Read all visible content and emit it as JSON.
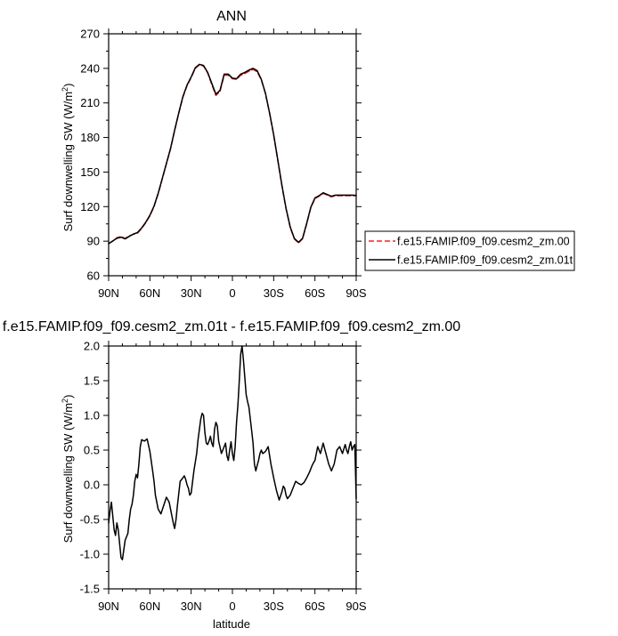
{
  "chart_data": [
    {
      "type": "line",
      "title": "ANN",
      "xlabel": "",
      "ylabel": "Surf downwelling SW (W/m²)",
      "ylabel_main": "Surf downwelling SW (W/m",
      "ylabel_sup": "2",
      "ylabel_tail": ")",
      "x_direction": "90N to 90S",
      "xlim": [
        90,
        -90
      ],
      "ylim": [
        60,
        270
      ],
      "x_ticks": [
        90,
        60,
        30,
        0,
        -30,
        -60,
        -90
      ],
      "x_tick_labels": [
        "90N",
        "60N",
        "30N",
        "0",
        "30S",
        "60S",
        "90S"
      ],
      "y_ticks": [
        60,
        90,
        120,
        150,
        180,
        210,
        240,
        270
      ],
      "y_tick_labels": [
        "60",
        "90",
        "120",
        "150",
        "180",
        "210",
        "240",
        "270"
      ],
      "grid": false,
      "legend_placement": "right",
      "series": [
        {
          "name": "f.e15.FAMIP.f09_f09.cesm2_zm.00",
          "color": "#e8262b",
          "dash": "dashed",
          "x": [
            90,
            87,
            84,
            81,
            78,
            75,
            72,
            69,
            66,
            63,
            60,
            57,
            54,
            51,
            48,
            45,
            42,
            39,
            36,
            33,
            30,
            27,
            24,
            21,
            18,
            15,
            12,
            9,
            6,
            3,
            0,
            -3,
            -6,
            -9,
            -12,
            -15,
            -18,
            -21,
            -24,
            -27,
            -30,
            -33,
            -36,
            -39,
            -42,
            -45,
            -48,
            -51,
            -54,
            -57,
            -60,
            -63,
            -66,
            -69,
            -72,
            -75,
            -78,
            -81,
            -84,
            -87,
            -90
          ],
          "y": [
            88,
            90,
            93,
            94,
            92.5,
            94.5,
            96,
            97,
            101,
            106,
            112,
            120,
            131,
            144,
            157,
            170,
            186,
            201,
            215,
            225,
            232,
            240,
            243,
            242,
            236,
            226,
            216.5,
            220,
            234,
            234,
            231,
            230.5,
            234,
            235.5,
            237.5,
            239,
            237,
            230,
            218,
            201,
            182,
            160,
            138,
            118,
            102,
            92,
            88.5,
            92,
            105,
            119,
            127,
            129,
            131.5,
            130,
            128.5,
            129.5,
            129.5,
            129.5,
            129.5,
            129.5,
            129.5
          ]
        },
        {
          "name": "f.e15.FAMIP.f09_f09.cesm2_zm.01t",
          "color": "#000000",
          "dash": "solid",
          "x": [
            90,
            87,
            84,
            81,
            78,
            75,
            72,
            69,
            66,
            63,
            60,
            57,
            54,
            51,
            48,
            45,
            42,
            39,
            36,
            33,
            30,
            27,
            24,
            21,
            18,
            15,
            12,
            9,
            6,
            3,
            0,
            -3,
            -6,
            -9,
            -12,
            -15,
            -18,
            -21,
            -24,
            -27,
            -30,
            -33,
            -36,
            -39,
            -42,
            -45,
            -48,
            -51,
            -54,
            -57,
            -60,
            -63,
            -66,
            -69,
            -72,
            -75,
            -78,
            -81,
            -84,
            -87,
            -90
          ],
          "y": [
            87.8,
            90.2,
            92.5,
            93.5,
            92,
            94.2,
            96.2,
            97.5,
            101.5,
            106.5,
            112.5,
            120.5,
            131.5,
            144.5,
            157.5,
            170.5,
            186.5,
            201.5,
            215.5,
            225.5,
            232.5,
            240.5,
            243.5,
            242.5,
            236.5,
            227,
            217.5,
            221,
            235,
            235,
            231.5,
            231,
            235,
            236.5,
            238.5,
            240,
            238,
            230.5,
            218.5,
            201.5,
            182.5,
            160.5,
            138.5,
            118.5,
            102.5,
            92.5,
            89,
            92.5,
            105.5,
            119.5,
            127.5,
            129.5,
            132,
            130.5,
            129,
            130,
            130,
            130,
            130,
            130,
            129.8
          ]
        }
      ]
    },
    {
      "type": "line",
      "title": "f.e15.FAMIP.f09_f09.cesm2_zm.01t - f.e15.FAMIP.f09_f09.cesm2_zm.00",
      "xlabel": "latitude",
      "ylabel": "Surf downwelling SW (W/m²)",
      "ylabel_main": "Surf downwelling SW (W/m",
      "ylabel_sup": "2",
      "ylabel_tail": ")",
      "x_direction": "90N to 90S",
      "xlim": [
        90,
        -90
      ],
      "ylim": [
        -1.5,
        2.0
      ],
      "x_ticks": [
        90,
        60,
        30,
        0,
        -30,
        -60,
        -90
      ],
      "x_tick_labels": [
        "90N",
        "60N",
        "30N",
        "0",
        "30S",
        "60S",
        "90S"
      ],
      "y_ticks": [
        -1.5,
        -1.0,
        -0.5,
        0.0,
        0.5,
        1.0,
        1.5,
        2.0
      ],
      "y_tick_labels": [
        "-1.5",
        "-1.0",
        "-0.5",
        "0.0",
        "0.5",
        "1.0",
        "1.5",
        "2.0"
      ],
      "grid": false,
      "series": [
        {
          "color": "#000000",
          "dash": "solid",
          "x": [
            90,
            89,
            88,
            87,
            86,
            85,
            84,
            83,
            82,
            81,
            80,
            78,
            76,
            75,
            74,
            73,
            72,
            71,
            70,
            69,
            68,
            67,
            66,
            64,
            62,
            60,
            58,
            57,
            56,
            54,
            52,
            50,
            48,
            46,
            45,
            44,
            43,
            42,
            41,
            40,
            38,
            36,
            35,
            34,
            33,
            32,
            31,
            30,
            28,
            26,
            25,
            24,
            23,
            22,
            21,
            20,
            19,
            18,
            17,
            16,
            15,
            14,
            13,
            12,
            11,
            10,
            8,
            6,
            5,
            4,
            3,
            2,
            1,
            0,
            -1,
            -2,
            -3,
            -4,
            -5,
            -6,
            -7,
            -8,
            -9,
            -10,
            -11,
            -12,
            -13,
            -14,
            -15,
            -16,
            -17,
            -18,
            -19,
            -20,
            -21,
            -22,
            -24,
            -26,
            -28,
            -30,
            -32,
            -34,
            -36,
            -37,
            -38,
            -39,
            -40,
            -42,
            -44,
            -45,
            -46,
            -48,
            -50,
            -52,
            -54,
            -56,
            -58,
            -59,
            -60,
            -61,
            -62,
            -63,
            -64,
            -66,
            -68,
            -70,
            -72,
            -74,
            -76,
            -78,
            -80,
            -82,
            -83,
            -84,
            -85,
            -86,
            -87,
            -88,
            -89,
            -90
          ],
          "y": [
            -0.55,
            -0.38,
            -0.25,
            -0.45,
            -0.65,
            -0.73,
            -0.55,
            -0.65,
            -0.85,
            -1.05,
            -1.08,
            -0.8,
            -0.7,
            -0.5,
            -0.35,
            -0.28,
            -0.15,
            0.05,
            0.15,
            0.1,
            0.3,
            0.55,
            0.65,
            0.63,
            0.66,
            0.48,
            0.2,
            0.05,
            -0.15,
            -0.35,
            -0.42,
            -0.3,
            -0.18,
            -0.25,
            -0.35,
            -0.45,
            -0.55,
            -0.63,
            -0.5,
            -0.3,
            0.05,
            0.1,
            0.13,
            0.08,
            0.0,
            -0.05,
            -0.15,
            -0.12,
            0.2,
            0.45,
            0.65,
            0.8,
            0.95,
            1.03,
            1.0,
            0.75,
            0.6,
            0.58,
            0.63,
            0.7,
            0.6,
            0.55,
            0.8,
            0.9,
            0.85,
            0.63,
            0.45,
            0.55,
            0.6,
            0.42,
            0.35,
            0.5,
            0.62,
            0.45,
            0.35,
            0.55,
            0.9,
            1.15,
            1.5,
            1.88,
            2.0,
            1.8,
            1.55,
            1.3,
            1.2,
            1.12,
            0.95,
            0.78,
            0.6,
            0.3,
            0.2,
            0.28,
            0.35,
            0.45,
            0.5,
            0.45,
            0.48,
            0.55,
            0.3,
            0.1,
            -0.08,
            -0.22,
            -0.1,
            -0.02,
            -0.05,
            -0.15,
            -0.2,
            -0.15,
            -0.05,
            0.0,
            0.05,
            0.02,
            0.0,
            0.03,
            0.1,
            0.18,
            0.28,
            0.32,
            0.35,
            0.45,
            0.55,
            0.5,
            0.45,
            0.6,
            0.45,
            0.3,
            0.2,
            0.3,
            0.5,
            0.55,
            0.45,
            0.58,
            0.5,
            0.45,
            0.55,
            0.62,
            0.5,
            0.55,
            0.58,
            -0.2
          ]
        }
      ]
    }
  ]
}
